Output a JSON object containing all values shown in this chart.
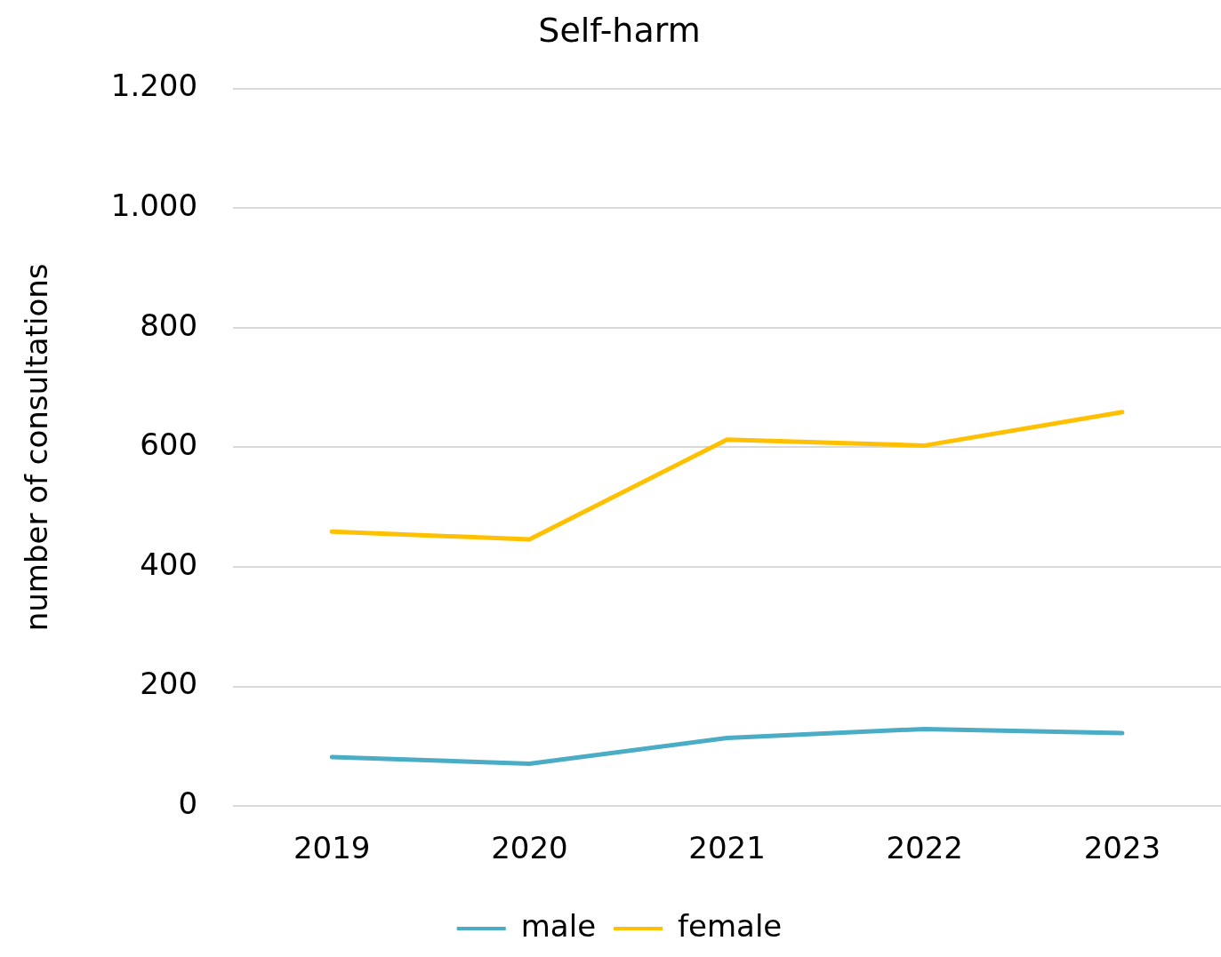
{
  "chart_data": {
    "type": "line",
    "title": "Self-harm",
    "ylabel": "number of consultations",
    "categories": [
      "2019",
      "2020",
      "2021",
      "2022",
      "2023"
    ],
    "series": [
      {
        "name": "male",
        "color": "#4bacc6",
        "values": [
          82,
          71,
          114,
          129,
          122
        ]
      },
      {
        "name": "female",
        "color": "#ffc000",
        "values": [
          459,
          446,
          613,
          603,
          659
        ]
      }
    ],
    "ylim": [
      0,
      1200
    ],
    "yticks": [
      0,
      200,
      400,
      600,
      800,
      {
        "value": 1000,
        "label": "1.000"
      },
      {
        "value": 1200,
        "label": "1.200"
      }
    ],
    "grid": "y",
    "legend": "bottom",
    "marker": "none",
    "line_style": "solid"
  }
}
